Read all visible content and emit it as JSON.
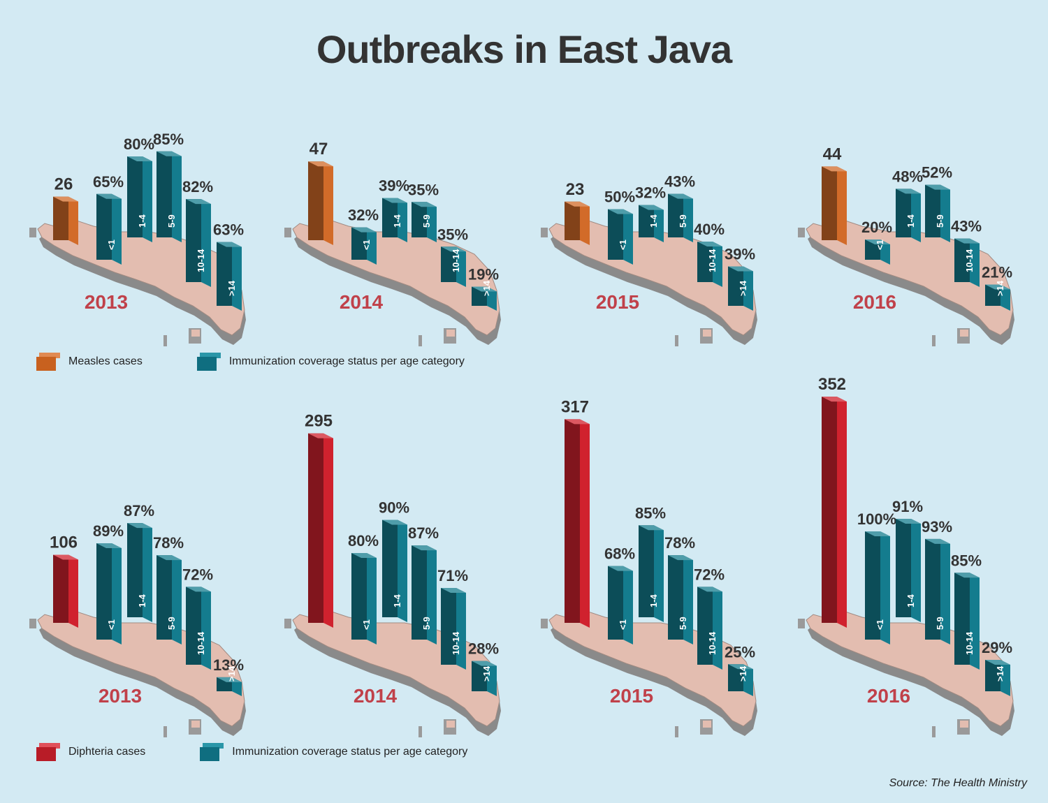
{
  "title": "Outbreaks in East Java",
  "source": "Source: The Health Ministry",
  "colors": {
    "background": "#d3eaf3",
    "measles": "#d26b29",
    "diphtheria": "#d0222e",
    "immunization": "#147c8e",
    "year_label": "#c0414a",
    "map": "#e3bdb0"
  },
  "legends": {
    "measles": {
      "cases_label": "Measles cases",
      "immunization_label": "Immunization coverage status per age category"
    },
    "diphtheria": {
      "cases_label": "Diphteria cases",
      "immunization_label": "Immunization coverage status per age category"
    }
  },
  "chart_data": [
    {
      "type": "bar",
      "disease": "measles",
      "categories": [
        "<1",
        "1-4",
        "5-9",
        "10-14",
        ">14"
      ],
      "panels": [
        {
          "year": "2013",
          "cases": 26,
          "coverage": [
            65,
            80,
            85,
            82,
            63
          ]
        },
        {
          "year": "2014",
          "cases": 47,
          "coverage": [
            32,
            39,
            35,
            35,
            19
          ]
        },
        {
          "year": "2015",
          "cases": 23,
          "coverage": [
            50,
            32,
            43,
            40,
            39
          ]
        },
        {
          "year": "2016",
          "cases": 44,
          "coverage": [
            20,
            48,
            52,
            43,
            21
          ]
        }
      ]
    },
    {
      "type": "bar",
      "disease": "diphtheria",
      "categories": [
        "<1",
        "1-4",
        "5-9",
        "10-14",
        ">14"
      ],
      "panels": [
        {
          "year": "2013",
          "cases": 106,
          "coverage": [
            89,
            87,
            78,
            72,
            13
          ]
        },
        {
          "year": "2014",
          "cases": 295,
          "coverage": [
            80,
            90,
            87,
            71,
            28
          ]
        },
        {
          "year": "2015",
          "cases": 317,
          "coverage": [
            68,
            85,
            78,
            72,
            25
          ]
        },
        {
          "year": "2016",
          "cases": 352,
          "coverage": [
            100,
            91,
            93,
            85,
            29
          ]
        }
      ]
    }
  ]
}
